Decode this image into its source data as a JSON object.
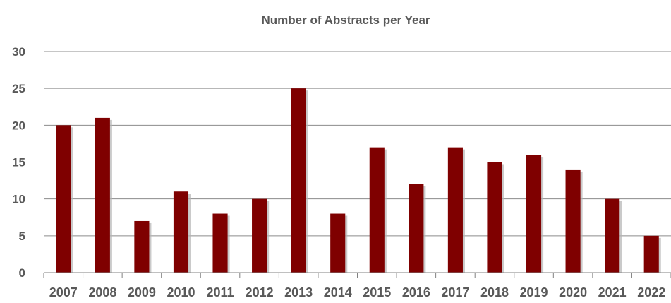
{
  "chart_data": {
    "type": "bar",
    "title": "Number of Abstracts per Year",
    "xlabel": "",
    "ylabel": "",
    "categories": [
      "2007",
      "2008",
      "2009",
      "2010",
      "2011",
      "2012",
      "2013",
      "2014",
      "2015",
      "2016",
      "2017",
      "2018",
      "2019",
      "2020",
      "2021",
      "2022"
    ],
    "values": [
      20,
      21,
      7,
      11,
      8,
      10,
      25,
      8,
      17,
      12,
      17,
      15,
      16,
      14,
      10,
      5
    ],
    "ylim": [
      0,
      30
    ],
    "yticks": [
      "0",
      "5",
      "10",
      "15",
      "20",
      "25",
      "30"
    ],
    "grid": true,
    "legend": "none",
    "colors": {
      "bar": "#7f0000",
      "bar_shadow": "#b3b3b3",
      "grid": "#8c8c8c",
      "axis": "#808080",
      "text": "#595959"
    }
  }
}
